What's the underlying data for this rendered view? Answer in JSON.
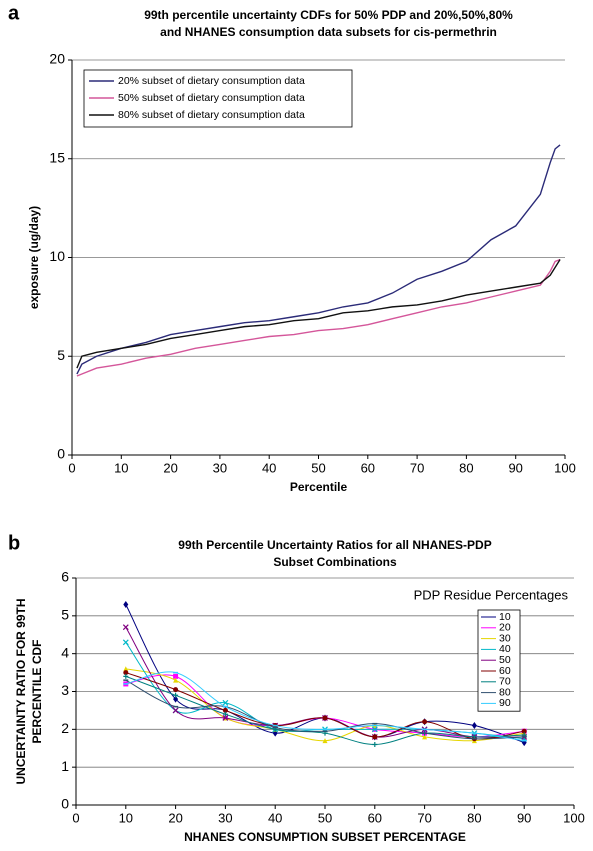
{
  "chart_data": [
    {
      "type": "line",
      "panel_label": "a",
      "title": [
        "99th percentile uncertainty CDFs for 50% PDP and 20%,50%,80%",
        "and NHANES consumption data subsets for cis-permethrin"
      ],
      "x_label": "Percentile",
      "y_label": [
        "exposure (ug/day)"
      ],
      "x": [
        1,
        2,
        5,
        10,
        15,
        20,
        25,
        30,
        35,
        40,
        45,
        50,
        55,
        60,
        65,
        70,
        75,
        80,
        85,
        90,
        95,
        97,
        98,
        99
      ],
      "series": [
        {
          "name": "20% subset of dietary consumption data",
          "color": "#2b2b78",
          "values": [
            4.1,
            4.6,
            5.0,
            5.4,
            5.7,
            6.1,
            6.3,
            6.5,
            6.7,
            6.8,
            7.0,
            7.2,
            7.5,
            7.7,
            8.2,
            8.9,
            9.3,
            9.8,
            10.9,
            11.6,
            13.2,
            14.8,
            15.5,
            15.7
          ]
        },
        {
          "name": "50% subset of dietary consumption data",
          "color": "#d4569a",
          "values": [
            4.0,
            4.1,
            4.4,
            4.6,
            4.9,
            5.1,
            5.4,
            5.6,
            5.8,
            6.0,
            6.1,
            6.3,
            6.4,
            6.6,
            6.9,
            7.2,
            7.5,
            7.7,
            8.0,
            8.3,
            8.6,
            9.3,
            9.8,
            9.9
          ]
        },
        {
          "name": "80% subset of dietary consumption data",
          "color": "#111111",
          "values": [
            4.4,
            5.0,
            5.2,
            5.4,
            5.6,
            5.9,
            6.1,
            6.3,
            6.5,
            6.6,
            6.8,
            6.9,
            7.2,
            7.3,
            7.5,
            7.6,
            7.8,
            8.1,
            8.3,
            8.5,
            8.7,
            9.1,
            9.5,
            9.9
          ]
        }
      ],
      "xlim": [
        0,
        100
      ],
      "xticks": [
        0,
        10,
        20,
        30,
        40,
        50,
        60,
        70,
        80,
        90,
        100
      ],
      "ylim": [
        0,
        20
      ],
      "yticks": [
        0,
        5,
        10,
        15,
        20
      ],
      "grid": true,
      "legend": "upper left",
      "markers": false,
      "smooth": false
    },
    {
      "type": "line",
      "panel_label": "b",
      "title": [
        "99th Percentile Uncertainty Ratios for all NHANES-PDP",
        "Subset Combinations"
      ],
      "x_label": "NHANES CONSUMPTION SUBSET PERCENTAGE",
      "y_label": [
        "UNCERTAINTY RATIO FOR 99TH",
        "PERCENTILE CDF"
      ],
      "legend_title": "PDP Residue Percentages",
      "x": [
        10,
        20,
        30,
        40,
        50,
        60,
        70,
        80,
        90
      ],
      "series": [
        {
          "name": "10",
          "color": "#000080",
          "values": [
            5.3,
            2.8,
            2.5,
            1.9,
            2.3,
            1.8,
            2.2,
            2.1,
            1.65
          ]
        },
        {
          "name": "20",
          "color": "#ff00ff",
          "values": [
            3.2,
            3.4,
            2.3,
            2.1,
            2.3,
            2.0,
            1.9,
            1.8,
            1.95
          ]
        },
        {
          "name": "30",
          "color": "#e6d600",
          "values": [
            3.6,
            3.3,
            2.3,
            2.0,
            1.7,
            2.1,
            1.8,
            1.7,
            1.9
          ]
        },
        {
          "name": "40",
          "color": "#00b8c8",
          "values": [
            4.3,
            2.5,
            2.7,
            2.0,
            2.0,
            2.0,
            2.0,
            1.9,
            1.75
          ]
        },
        {
          "name": "50",
          "color": "#800080",
          "values": [
            4.7,
            2.5,
            2.3,
            2.1,
            2.3,
            1.8,
            2.0,
            1.8,
            1.8
          ]
        },
        {
          "name": "60",
          "color": "#800000",
          "values": [
            3.5,
            3.05,
            2.5,
            2.1,
            2.3,
            1.8,
            2.2,
            1.75,
            1.95
          ]
        },
        {
          "name": "70",
          "color": "#008080",
          "values": [
            3.4,
            2.9,
            2.4,
            2.0,
            1.9,
            1.6,
            1.9,
            1.8,
            1.85
          ]
        },
        {
          "name": "80",
          "color": "#2f4f6f",
          "values": [
            3.3,
            2.6,
            2.6,
            2.05,
            1.95,
            2.15,
            1.9,
            1.75,
            1.8
          ]
        },
        {
          "name": "90",
          "color": "#33ccff",
          "values": [
            3.2,
            3.5,
            2.6,
            2.1,
            2.0,
            2.1,
            2.0,
            1.9,
            1.7
          ]
        }
      ],
      "xlim": [
        0,
        100
      ],
      "xticks": [
        0,
        10,
        20,
        30,
        40,
        50,
        60,
        70,
        80,
        90,
        100
      ],
      "ylim": [
        0,
        6
      ],
      "yticks": [
        0,
        1,
        2,
        3,
        4,
        5,
        6
      ],
      "grid": true,
      "legend": "upper right",
      "markers": true,
      "smooth": true
    }
  ]
}
